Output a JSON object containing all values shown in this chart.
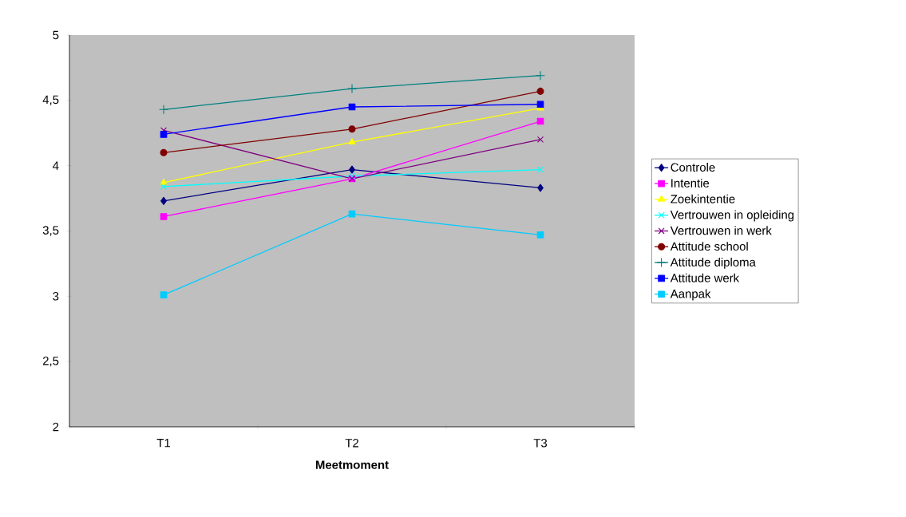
{
  "chart_data": {
    "type": "line",
    "xlabel": "Meetmoment",
    "categories": [
      "T1",
      "T2",
      "T3"
    ],
    "ylim": [
      2,
      5
    ],
    "yticks": [
      2,
      {
        "value": 2.5,
        "label": "2,5"
      },
      3,
      {
        "value": 3.5,
        "label": "3,5"
      },
      4,
      {
        "value": 4.5,
        "label": "4,5"
      },
      5
    ],
    "grid": false,
    "legend": "right",
    "series": [
      {
        "name": "Controle",
        "color": "#000080",
        "marker": "diamond",
        "values": [
          3.73,
          3.97,
          3.83
        ]
      },
      {
        "name": "Intentie",
        "color": "#ff00ff",
        "marker": "square",
        "values": [
          3.61,
          3.9,
          4.34
        ]
      },
      {
        "name": "Zoekintentie",
        "color": "#ffff00",
        "marker": "triangle",
        "values": [
          3.87,
          4.18,
          4.44
        ]
      },
      {
        "name": "Vertrouwen in opleiding",
        "color": "#00ffff",
        "marker": "cross",
        "values": [
          3.84,
          3.92,
          3.97
        ]
      },
      {
        "name": "Vertrouwen in werk",
        "color": "#800080",
        "marker": "cross",
        "values": [
          4.27,
          3.9,
          4.2
        ]
      },
      {
        "name": "Attitude school",
        "color": "#800000",
        "marker": "circle",
        "values": [
          4.1,
          4.28,
          4.57
        ]
      },
      {
        "name": "Attitude diploma",
        "color": "#008080",
        "marker": "plus",
        "values": [
          4.43,
          4.59,
          4.69
        ]
      },
      {
        "name": "Attitude werk",
        "color": "#0000ff",
        "marker": "square",
        "values": [
          4.24,
          4.45,
          4.47
        ]
      },
      {
        "name": "Aanpak",
        "color": "#00ccff",
        "marker": "square",
        "values": [
          3.01,
          3.63,
          3.47
        ]
      }
    ]
  }
}
